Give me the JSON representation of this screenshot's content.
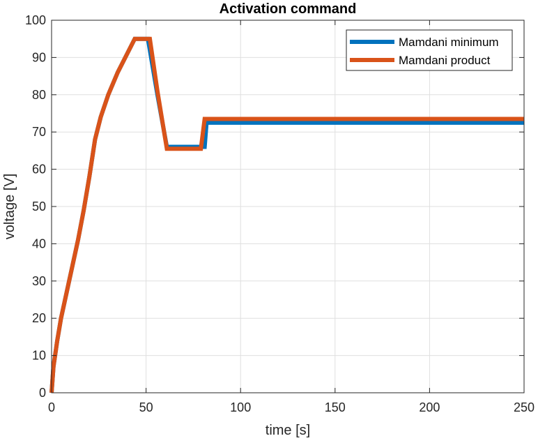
{
  "chart_data": {
    "type": "line",
    "title": "Activation command",
    "xlabel": "time [s]",
    "ylabel": "voltage [V]",
    "xlim": [
      0,
      250
    ],
    "ylim": [
      0,
      100
    ],
    "xticks": [
      0,
      50,
      100,
      150,
      200,
      250
    ],
    "yticks": [
      0,
      10,
      20,
      30,
      40,
      50,
      60,
      70,
      80,
      90,
      100
    ],
    "grid": true,
    "legend_position": "top-right",
    "series": [
      {
        "name": "Mamdani minimum",
        "color": "#0072BD",
        "points": [
          [
            0,
            0
          ],
          [
            1,
            7
          ],
          [
            3,
            14
          ],
          [
            5,
            20
          ],
          [
            8,
            27
          ],
          [
            11,
            34
          ],
          [
            14,
            41
          ],
          [
            17,
            49
          ],
          [
            20,
            58
          ],
          [
            23,
            68
          ],
          [
            26,
            74
          ],
          [
            30,
            80
          ],
          [
            35,
            86
          ],
          [
            40,
            91
          ],
          [
            44,
            95
          ],
          [
            51,
            95
          ],
          [
            56,
            80
          ],
          [
            61,
            66
          ],
          [
            78,
            66
          ],
          [
            81,
            66
          ],
          [
            82,
            72.5
          ],
          [
            250,
            72.5
          ]
        ]
      },
      {
        "name": "Mamdani product",
        "color": "#D95319",
        "points": [
          [
            0,
            0
          ],
          [
            1,
            7
          ],
          [
            3,
            14
          ],
          [
            5,
            20
          ],
          [
            8,
            27
          ],
          [
            11,
            34
          ],
          [
            14,
            41
          ],
          [
            17,
            49
          ],
          [
            20,
            58
          ],
          [
            23,
            68
          ],
          [
            26,
            74
          ],
          [
            30,
            80
          ],
          [
            35,
            86
          ],
          [
            40,
            91
          ],
          [
            44,
            95
          ],
          [
            52,
            95
          ],
          [
            56,
            81
          ],
          [
            61,
            65.5
          ],
          [
            79,
            65.5
          ],
          [
            81,
            73.5
          ],
          [
            250,
            73.5
          ]
        ]
      }
    ]
  }
}
